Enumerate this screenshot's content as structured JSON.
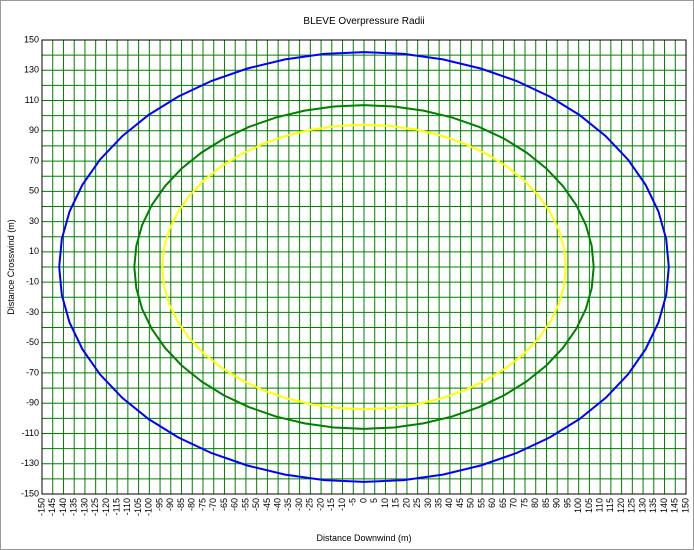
{
  "chart_data": {
    "type": "radii",
    "title": "BLEVE Overpressure Radii",
    "x_label": "Distance Downwind (m)",
    "y_label": "Distance Crosswind (m)",
    "xlim": [
      -150,
      150
    ],
    "xticks": [
      -150,
      -145,
      -140,
      -135,
      -130,
      -125,
      -120,
      -115,
      -110,
      -105,
      -100,
      -95,
      -90,
      -85,
      -80,
      -75,
      -70,
      -65,
      -60,
      -55,
      -50,
      -45,
      -40,
      -35,
      -30,
      -25,
      -20,
      -15,
      -10,
      -5,
      0,
      5,
      10,
      15,
      20,
      25,
      30,
      35,
      40,
      45,
      50,
      55,
      60,
      65,
      70,
      75,
      80,
      85,
      90,
      95,
      100,
      105,
      110,
      115,
      120,
      125,
      130,
      135,
      140,
      145,
      150
    ],
    "ylim": [
      -150,
      150
    ],
    "yticks": [
      150,
      130,
      110,
      90,
      70,
      50,
      30,
      10,
      -10,
      -30,
      -50,
      -70,
      -90,
      -110,
      -130,
      -150
    ],
    "yminor_ticks": [
      140,
      120,
      100,
      80,
      60,
      40,
      20,
      0,
      -20,
      -40,
      -60,
      -80,
      -100,
      -120,
      -140
    ],
    "grid": true,
    "grid_color": "#008000",
    "series": [
      {
        "color": "#0000ff",
        "radius": 142
      },
      {
        "color": "#008000",
        "radius": 107
      },
      {
        "color": "#ffff00",
        "radius": 94
      }
    ]
  }
}
